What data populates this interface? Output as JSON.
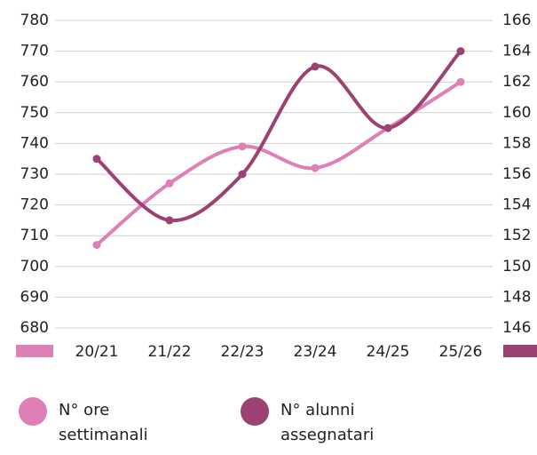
{
  "chart_data": {
    "type": "line",
    "categories": [
      "20/21",
      "21/22",
      "22/23",
      "23/24",
      "24/25",
      "25/26"
    ],
    "series": [
      {
        "name": "N° ore settimanali",
        "color": "#de7fb6",
        "values": [
          707,
          727,
          739,
          732,
          745,
          760
        ]
      },
      {
        "name": "N° alunni assegnatari",
        "color": "#9c4273",
        "axis": "y2",
        "values": [
          157,
          153,
          156,
          163,
          159,
          164
        ]
      }
    ],
    "ylim": [
      680,
      780
    ],
    "yticks": [
      680,
      690,
      700,
      710,
      720,
      730,
      740,
      750,
      760,
      770,
      780
    ],
    "y2lim": [
      146,
      166
    ],
    "y2ticks": [
      146,
      148,
      150,
      152,
      154,
      156,
      158,
      160,
      162,
      164,
      166
    ],
    "grid": true
  }
}
